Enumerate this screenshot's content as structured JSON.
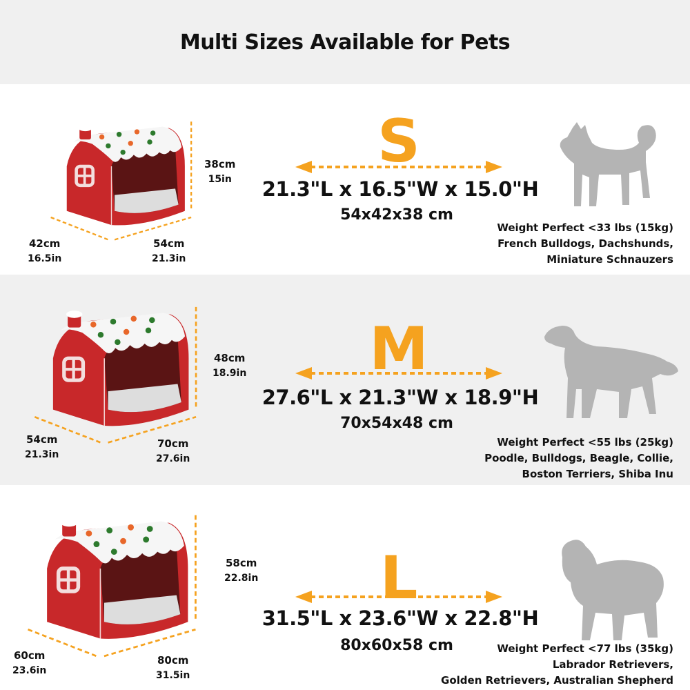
{
  "title": "Multi Sizes Available for Pets",
  "colors": {
    "accent": "#f5a21f",
    "bed_red": "#c8282a",
    "dog_gray": "#b4b4b4",
    "band_gray": "#f0f0f0"
  },
  "sizes": [
    {
      "letter": "S",
      "dims_in": "21.3\"L x 16.5\"W x 15.0\"H",
      "dims_cm": "54x42x38 cm",
      "height_cm": "38cm",
      "height_in": "15in",
      "depth_cm": "42cm",
      "depth_in": "16.5in",
      "width_cm": "54cm",
      "width_in": "21.3in",
      "weight": "Weight Perfect <33 lbs (15kg)",
      "breeds_1": "French Bulldogs, Dachshunds,",
      "breeds_2": "Miniature Schnauzers"
    },
    {
      "letter": "M",
      "dims_in": "27.6\"L x 21.3\"W x 18.9\"H",
      "dims_cm": "70x54x48 cm",
      "height_cm": "48cm",
      "height_in": "18.9in",
      "depth_cm": "54cm",
      "depth_in": "21.3in",
      "width_cm": "70cm",
      "width_in": "27.6in",
      "weight": "Weight Perfect <55 lbs (25kg)",
      "breeds_1": "Poodle, Bulldogs, Beagle, Collie,",
      "breeds_2": "Boston Terriers, Shiba Inu"
    },
    {
      "letter": "L",
      "dims_in": "31.5\"L x 23.6\"W x 22.8\"H",
      "dims_cm": "80x60x58 cm",
      "height_cm": "58cm",
      "height_in": "22.8in",
      "depth_cm": "60cm",
      "depth_in": "23.6in",
      "width_cm": "80cm",
      "width_in": "31.5in",
      "weight": "Weight Perfect <77 lbs (35kg)",
      "breeds_1": "Labrador Retrievers,",
      "breeds_2": "Golden Retrievers, Australian Shepherd"
    }
  ]
}
